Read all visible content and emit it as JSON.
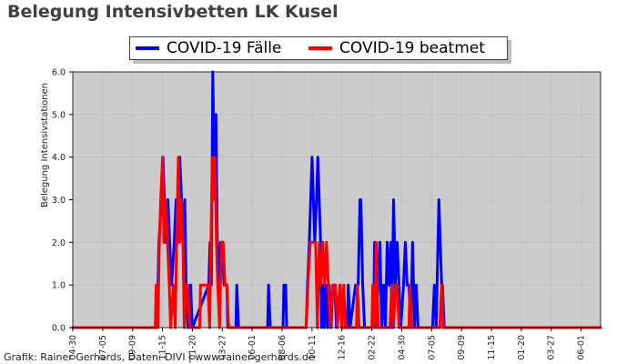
{
  "page": {
    "title": "Belegung Intensivbetten LK Kusel",
    "credit": "Grafik: Rainer Gerhards, Daten: DIVI | www.rainer-gerhards.de"
  },
  "chart_data": {
    "type": "line",
    "ylabel": "Belegung Intensivstationen",
    "ylim": [
      0,
      6
    ],
    "y_ticks": [
      "0.0",
      "1.0",
      "2.0",
      "3.0",
      "4.0",
      "5.0",
      "6.0"
    ],
    "x_tick_labels": [
      "04-30",
      "07-05",
      "09-09",
      "11-15",
      "01-20",
      "03-27",
      "06-01",
      "08-06",
      "10-11",
      "12-16",
      "02-22",
      "04-30",
      "07-05",
      "09-09",
      "11-15",
      "01-20",
      "03-27",
      "06-01"
    ],
    "x_ticks_index": [
      0,
      66,
      132,
      198,
      264,
      330,
      396,
      462,
      528,
      594,
      660,
      726,
      792,
      858,
      924,
      990,
      1056,
      1122
    ],
    "x_range": [
      0,
      1165
    ],
    "background": "#cccccc",
    "grid": true,
    "legend_position": "top-center",
    "series": [
      {
        "name": "COVID-19 Fälle",
        "color": "#0000ff",
        "points": [
          [
            0,
            0
          ],
          [
            186,
            0
          ],
          [
            190,
            2
          ],
          [
            196,
            3
          ],
          [
            199,
            4
          ],
          [
            202,
            3
          ],
          [
            205,
            2
          ],
          [
            210,
            3
          ],
          [
            214,
            2
          ],
          [
            218,
            1
          ],
          [
            224,
            2
          ],
          [
            228,
            3
          ],
          [
            231,
            2
          ],
          [
            236,
            4
          ],
          [
            240,
            3
          ],
          [
            244,
            2
          ],
          [
            247,
            3
          ],
          [
            250,
            1
          ],
          [
            254,
            0
          ],
          [
            260,
            1
          ],
          [
            264,
            0
          ],
          [
            300,
            1
          ],
          [
            303,
            2
          ],
          [
            306,
            1
          ],
          [
            309,
            6
          ],
          [
            312,
            4
          ],
          [
            316,
            5
          ],
          [
            319,
            2
          ],
          [
            322,
            1
          ],
          [
            326,
            2
          ],
          [
            330,
            2
          ],
          [
            334,
            1
          ],
          [
            340,
            1
          ],
          [
            342,
            0
          ],
          [
            360,
            0
          ],
          [
            362,
            1
          ],
          [
            366,
            0
          ],
          [
            430,
            0
          ],
          [
            432,
            1
          ],
          [
            436,
            0
          ],
          [
            464,
            0
          ],
          [
            466,
            1
          ],
          [
            470,
            1
          ],
          [
            472,
            0
          ],
          [
            515,
            0
          ],
          [
            518,
            1
          ],
          [
            522,
            2
          ],
          [
            525,
            3
          ],
          [
            528,
            4
          ],
          [
            531,
            3
          ],
          [
            534,
            2
          ],
          [
            538,
            3
          ],
          [
            541,
            4
          ],
          [
            544,
            3
          ],
          [
            547,
            2
          ],
          [
            549,
            0
          ],
          [
            552,
            1
          ],
          [
            555,
            0
          ],
          [
            558,
            1
          ],
          [
            562,
            0
          ],
          [
            566,
            1
          ],
          [
            570,
            0
          ],
          [
            574,
            1
          ],
          [
            578,
            1
          ],
          [
            582,
            0
          ],
          [
            590,
            1
          ],
          [
            594,
            0
          ],
          [
            606,
            0
          ],
          [
            608,
            1
          ],
          [
            612,
            0
          ],
          [
            624,
            1
          ],
          [
            630,
            1
          ],
          [
            634,
            3
          ],
          [
            636,
            3
          ],
          [
            640,
            1
          ],
          [
            644,
            0
          ],
          [
            664,
            0
          ],
          [
            666,
            2
          ],
          [
            670,
            0
          ],
          [
            678,
            2
          ],
          [
            682,
            0
          ],
          [
            686,
            1
          ],
          [
            690,
            0
          ],
          [
            694,
            2
          ],
          [
            698,
            1
          ],
          [
            702,
            2
          ],
          [
            704,
            0
          ],
          [
            708,
            3
          ],
          [
            712,
            1
          ],
          [
            716,
            2
          ],
          [
            720,
            1
          ],
          [
            724,
            0
          ],
          [
            730,
            1
          ],
          [
            734,
            2
          ],
          [
            738,
            1
          ],
          [
            742,
            1
          ],
          [
            746,
            0
          ],
          [
            750,
            2
          ],
          [
            754,
            0
          ],
          [
            758,
            1
          ],
          [
            762,
            0
          ],
          [
            794,
            0
          ],
          [
            798,
            1
          ],
          [
            802,
            0
          ],
          [
            806,
            2
          ],
          [
            808,
            3
          ],
          [
            811,
            2
          ],
          [
            814,
            1
          ],
          [
            816,
            1
          ],
          [
            820,
            0
          ],
          [
            1165,
            0
          ]
        ]
      },
      {
        "name": "COVID-19 beatmet",
        "color": "#ff0000",
        "points": [
          [
            0,
            0
          ],
          [
            182,
            0
          ],
          [
            184,
            1
          ],
          [
            188,
            0
          ],
          [
            191,
            2
          ],
          [
            194,
            3
          ],
          [
            198,
            4
          ],
          [
            201,
            2
          ],
          [
            205,
            3
          ],
          [
            209,
            2
          ],
          [
            213,
            1
          ],
          [
            216,
            0
          ],
          [
            222,
            1
          ],
          [
            226,
            0
          ],
          [
            229,
            2
          ],
          [
            233,
            4
          ],
          [
            236,
            2
          ],
          [
            239,
            3
          ],
          [
            243,
            2
          ],
          [
            246,
            0
          ],
          [
            250,
            1
          ],
          [
            254,
            1
          ],
          [
            258,
            0
          ],
          [
            280,
            0
          ],
          [
            282,
            1
          ],
          [
            290,
            1
          ],
          [
            298,
            1
          ],
          [
            302,
            0
          ],
          [
            305,
            2
          ],
          [
            308,
            4
          ],
          [
            311,
            3
          ],
          [
            314,
            4
          ],
          [
            317,
            2
          ],
          [
            320,
            1
          ],
          [
            324,
            0
          ],
          [
            328,
            2
          ],
          [
            332,
            2
          ],
          [
            336,
            1
          ],
          [
            340,
            1
          ],
          [
            344,
            0
          ],
          [
            515,
            0
          ],
          [
            519,
            1
          ],
          [
            524,
            2
          ],
          [
            530,
            2
          ],
          [
            536,
            2
          ],
          [
            540,
            0
          ],
          [
            544,
            2
          ],
          [
            548,
            1
          ],
          [
            552,
            2
          ],
          [
            556,
            1
          ],
          [
            560,
            2
          ],
          [
            564,
            1
          ],
          [
            568,
            0
          ],
          [
            574,
            1
          ],
          [
            580,
            1
          ],
          [
            584,
            0
          ],
          [
            590,
            1
          ],
          [
            594,
            0
          ],
          [
            598,
            1
          ],
          [
            602,
            0
          ],
          [
            626,
            0
          ],
          [
            628,
            1
          ],
          [
            632,
            0
          ],
          [
            660,
            0
          ],
          [
            662,
            1
          ],
          [
            666,
            0
          ],
          [
            670,
            2
          ],
          [
            674,
            0
          ],
          [
            700,
            0
          ],
          [
            704,
            1
          ],
          [
            708,
            0
          ],
          [
            712,
            1
          ],
          [
            716,
            1
          ],
          [
            720,
            0
          ],
          [
            742,
            0
          ],
          [
            744,
            1
          ],
          [
            748,
            0
          ],
          [
            810,
            0
          ],
          [
            814,
            1
          ],
          [
            818,
            0
          ],
          [
            1165,
            0
          ]
        ]
      }
    ]
  }
}
